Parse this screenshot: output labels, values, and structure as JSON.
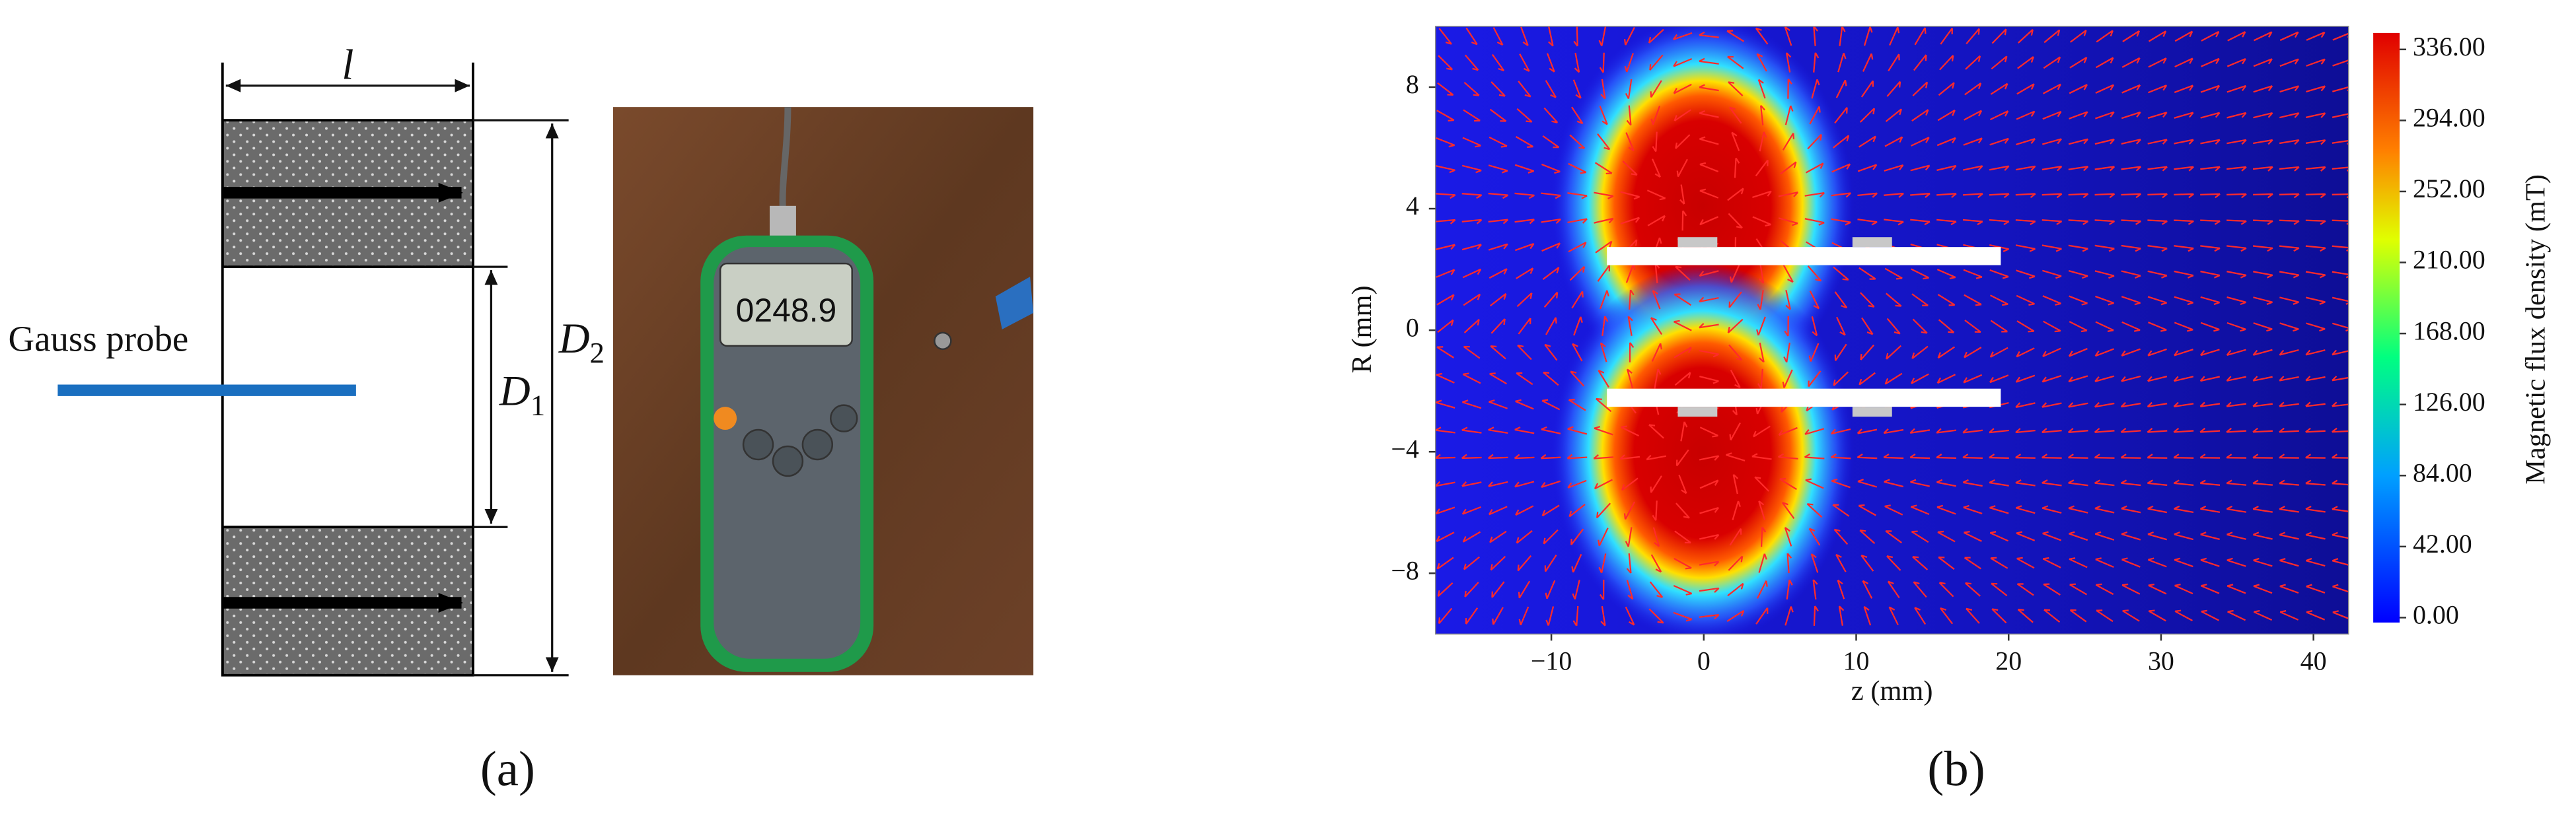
{
  "panel_a": {
    "length_label": "l",
    "outer_diameter": {
      "symbol": "D",
      "subscript": "2"
    },
    "inner_diameter": {
      "symbol": "D",
      "subscript": "1"
    },
    "probe_label": "Gauss probe",
    "meter_reading": "0248.9",
    "caption": "(a)"
  },
  "panel_b": {
    "xlabel": "z (mm)",
    "ylabel": "R (mm)",
    "xlim": [
      -17.6,
      42.3
    ],
    "ylim": [
      -10,
      10
    ],
    "xticks": [
      {
        "value": -10,
        "label": "−10"
      },
      0,
      10,
      20,
      30,
      40
    ],
    "yticks": [
      8,
      4,
      0,
      {
        "value": -4,
        "label": "−4"
      },
      {
        "value": -8,
        "label": "−8"
      }
    ],
    "colorbar": {
      "label": "Magnetic flux density (mT)",
      "lim": [
        0,
        336
      ],
      "ticks": [
        {
          "value": 336,
          "label": "336.00"
        },
        {
          "value": 294,
          "label": "294.00"
        },
        {
          "value": 252,
          "label": "252.00"
        },
        {
          "value": 210,
          "label": "210.00"
        },
        {
          "value": 168,
          "label": "168.00"
        },
        {
          "value": 126,
          "label": "126.00"
        },
        {
          "value": 84,
          "label": "84.00"
        },
        {
          "value": 42,
          "label": "42.00"
        },
        {
          "value": 0,
          "label": "0.00"
        }
      ]
    },
    "caption": "(b)"
  }
}
